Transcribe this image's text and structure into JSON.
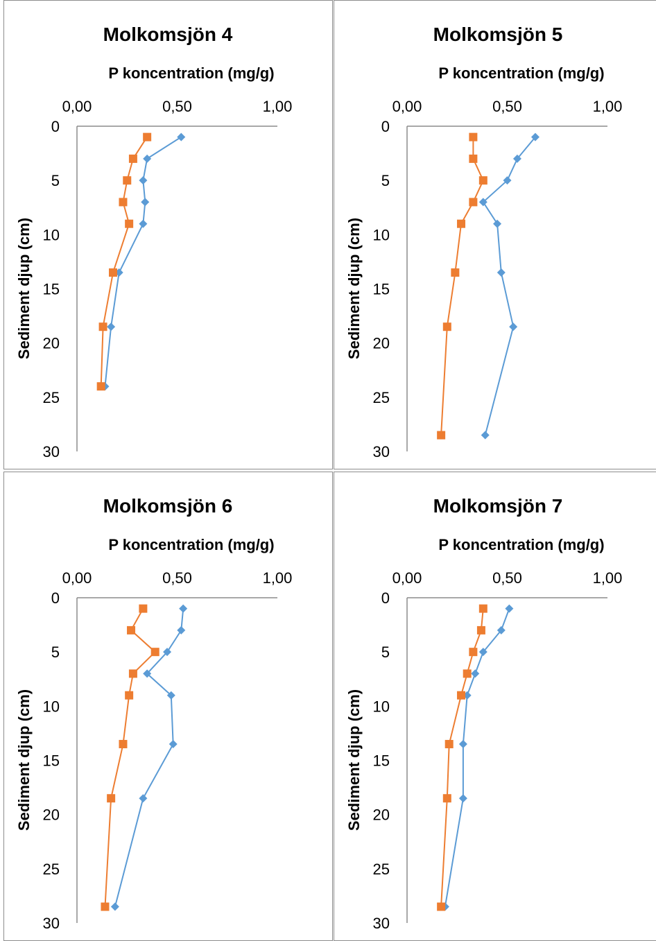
{
  "colors": {
    "series_a": "#5b9bd5",
    "series_b": "#ed7d31",
    "axis": "#8c8c8c",
    "border": "#8c8c8c"
  },
  "chart_data": [
    {
      "type": "line",
      "title": "Molkomsjön 4",
      "xlabel": "P koncentration (mg/g)",
      "ylabel": "Sediment djup (cm)",
      "xlim": [
        0,
        1
      ],
      "ylim": [
        0,
        30
      ],
      "x_axis_position": "top",
      "y_reversed": true,
      "x_ticks": [
        "0,00",
        "0,50",
        "1,00"
      ],
      "y_ticks": [
        "0",
        "5",
        "10",
        "15",
        "20",
        "25",
        "30"
      ],
      "grid": false,
      "legend": "none",
      "series": [
        {
          "color": "#5b9bd5",
          "marker": "diamond",
          "points": [
            [
              0.52,
              1
            ],
            [
              0.35,
              3
            ],
            [
              0.33,
              5
            ],
            [
              0.34,
              7
            ],
            [
              0.33,
              9
            ],
            [
              0.21,
              13.5
            ],
            [
              0.17,
              18.5
            ],
            [
              0.14,
              24
            ]
          ]
        },
        {
          "color": "#ed7d31",
          "marker": "square",
          "points": [
            [
              0.35,
              1
            ],
            [
              0.28,
              3
            ],
            [
              0.25,
              5
            ],
            [
              0.23,
              7
            ],
            [
              0.26,
              9
            ],
            [
              0.18,
              13.5
            ],
            [
              0.13,
              18.5
            ],
            [
              0.12,
              24
            ]
          ]
        }
      ]
    },
    {
      "type": "line",
      "title": "Molkomsjön 5",
      "xlabel": "P koncentration (mg/g)",
      "ylabel": "Sediment djup (cm)",
      "xlim": [
        0,
        1
      ],
      "ylim": [
        0,
        30
      ],
      "x_axis_position": "top",
      "y_reversed": true,
      "x_ticks": [
        "0,00",
        "0,50",
        "1,00"
      ],
      "y_ticks": [
        "0",
        "5",
        "10",
        "15",
        "20",
        "25",
        "30"
      ],
      "grid": false,
      "legend": "none",
      "series": [
        {
          "color": "#5b9bd5",
          "marker": "diamond",
          "points": [
            [
              0.64,
              1
            ],
            [
              0.55,
              3
            ],
            [
              0.5,
              5
            ],
            [
              0.38,
              7
            ],
            [
              0.45,
              9
            ],
            [
              0.47,
              13.5
            ],
            [
              0.53,
              18.5
            ],
            [
              0.39,
              28.5
            ]
          ]
        },
        {
          "color": "#ed7d31",
          "marker": "square",
          "points": [
            [
              0.33,
              1
            ],
            [
              0.33,
              3
            ],
            [
              0.38,
              5
            ],
            [
              0.33,
              7
            ],
            [
              0.27,
              9
            ],
            [
              0.24,
              13.5
            ],
            [
              0.2,
              18.5
            ],
            [
              0.17,
              28.5
            ]
          ]
        }
      ]
    },
    {
      "type": "line",
      "title": "Molkomsjön 6",
      "xlabel": "P koncentration (mg/g)",
      "ylabel": "Sediment djup (cm)",
      "xlim": [
        0,
        1
      ],
      "ylim": [
        0,
        30
      ],
      "x_axis_position": "top",
      "y_reversed": true,
      "x_ticks": [
        "0,00",
        "0,50",
        "1,00"
      ],
      "y_ticks": [
        "0",
        "5",
        "10",
        "15",
        "20",
        "25",
        "30"
      ],
      "grid": false,
      "legend": "none",
      "series": [
        {
          "color": "#5b9bd5",
          "marker": "diamond",
          "points": [
            [
              0.53,
              1
            ],
            [
              0.52,
              3
            ],
            [
              0.45,
              5
            ],
            [
              0.35,
              7
            ],
            [
              0.47,
              9
            ],
            [
              0.48,
              13.5
            ],
            [
              0.33,
              18.5
            ],
            [
              0.19,
              28.5
            ]
          ]
        },
        {
          "color": "#ed7d31",
          "marker": "square",
          "points": [
            [
              0.33,
              1
            ],
            [
              0.27,
              3
            ],
            [
              0.39,
              5
            ],
            [
              0.28,
              7
            ],
            [
              0.26,
              9
            ],
            [
              0.23,
              13.5
            ],
            [
              0.17,
              18.5
            ],
            [
              0.14,
              28.5
            ]
          ]
        }
      ]
    },
    {
      "type": "line",
      "title": "Molkomsjön 7",
      "xlabel": "P koncentration (mg/g)",
      "ylabel": "Sediment djup (cm)",
      "xlim": [
        0,
        1
      ],
      "ylim": [
        0,
        30
      ],
      "x_axis_position": "top",
      "y_reversed": true,
      "x_ticks": [
        "0,00",
        "0,50",
        "1,00"
      ],
      "y_ticks": [
        "0",
        "5",
        "10",
        "15",
        "20",
        "25",
        "30"
      ],
      "grid": false,
      "legend": "none",
      "series": [
        {
          "color": "#5b9bd5",
          "marker": "diamond",
          "points": [
            [
              0.51,
              1
            ],
            [
              0.47,
              3
            ],
            [
              0.38,
              5
            ],
            [
              0.34,
              7
            ],
            [
              0.3,
              9
            ],
            [
              0.28,
              13.5
            ],
            [
              0.28,
              18.5
            ],
            [
              0.19,
              28.5
            ]
          ]
        },
        {
          "color": "#ed7d31",
          "marker": "square",
          "points": [
            [
              0.38,
              1
            ],
            [
              0.37,
              3
            ],
            [
              0.33,
              5
            ],
            [
              0.3,
              7
            ],
            [
              0.27,
              9
            ],
            [
              0.21,
              13.5
            ],
            [
              0.2,
              18.5
            ],
            [
              0.17,
              28.5
            ]
          ]
        }
      ]
    }
  ]
}
